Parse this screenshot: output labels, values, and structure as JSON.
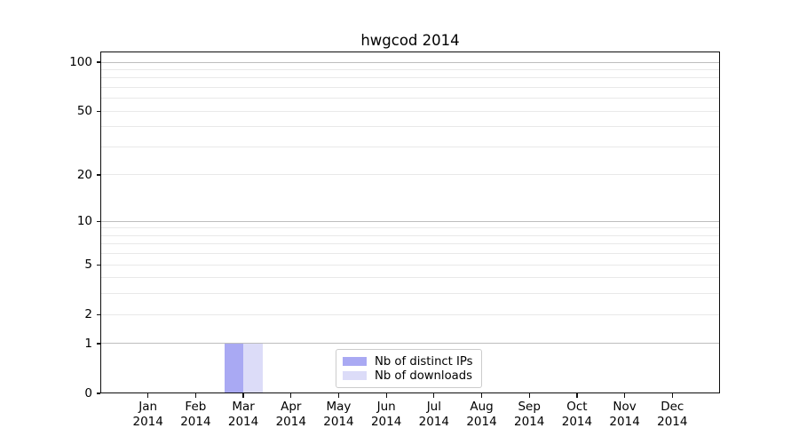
{
  "chart_data": {
    "type": "bar",
    "title": "hwgcod 2014",
    "categories": [
      "Jan",
      "Feb",
      "Mar",
      "Apr",
      "May",
      "Jun",
      "Jul",
      "Aug",
      "Sep",
      "Oct",
      "Nov",
      "Dec"
    ],
    "category_year": "2014",
    "series": [
      {
        "name": "Nb of distinct IPs",
        "color": "#a9a9f3",
        "values": [
          0,
          0,
          1,
          0,
          0,
          0,
          0,
          0,
          0,
          0,
          0,
          0
        ]
      },
      {
        "name": "Nb of downloads",
        "color": "#dcdcf8",
        "values": [
          0,
          0,
          1,
          0,
          0,
          0,
          0,
          0,
          0,
          0,
          0,
          0
        ]
      }
    ],
    "y_scale": "log1p",
    "ylim": [
      0,
      116
    ],
    "y_ticks": [
      {
        "value": 100,
        "label": "100"
      },
      {
        "value": 50,
        "label": "50"
      },
      {
        "value": 20,
        "label": "20"
      },
      {
        "value": 10,
        "label": "10"
      },
      {
        "value": 5,
        "label": "5"
      },
      {
        "value": 2,
        "label": "2"
      },
      {
        "value": 1,
        "label": "1"
      },
      {
        "value": 0,
        "label": "0"
      }
    ],
    "gridlines": {
      "major_values": [
        1,
        10,
        100
      ],
      "minor_values": [
        2,
        3,
        4,
        5,
        6,
        7,
        8,
        9,
        20,
        30,
        40,
        50,
        60,
        70,
        80,
        90
      ]
    },
    "grid": "both",
    "legend_position": "lower center",
    "colors": {
      "major_grid": "#bdbdbd",
      "minor_grid": "#e9e9e9",
      "spine": "#0d0d0d",
      "text": "#000000"
    }
  }
}
